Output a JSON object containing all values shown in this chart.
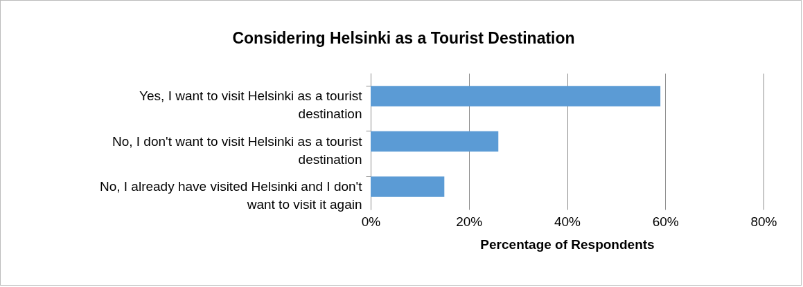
{
  "chart_data": {
    "type": "bar",
    "orientation": "horizontal",
    "title": "Considering Helsinki as a Tourist Destination",
    "categories": [
      "Yes, I want to visit Helsinki as a tourist destination",
      "No, I don't want to visit Helsinki as a tourist destination",
      "No, I already have visited Helsinki and I don't want to visit it again"
    ],
    "values": [
      59,
      26,
      15
    ],
    "color": "#5b9bd5",
    "xlim": [
      0,
      80
    ],
    "xticks": [
      {
        "value": 0,
        "label": "0%"
      },
      {
        "value": 20,
        "label": "20%"
      },
      {
        "value": 40,
        "label": "40%"
      },
      {
        "value": 60,
        "label": "60%"
      },
      {
        "value": 80,
        "label": "80%"
      }
    ],
    "xlabel": "Percentage of Respondents",
    "grid": "x"
  }
}
